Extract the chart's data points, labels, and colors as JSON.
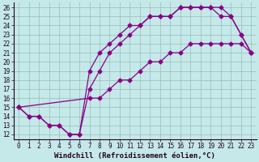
{
  "xlabel": "Windchill (Refroidissement éolien,°C)",
  "xlim": [
    -0.5,
    23.5
  ],
  "ylim": [
    11.5,
    26.5
  ],
  "xticks": [
    0,
    1,
    2,
    3,
    4,
    5,
    6,
    7,
    8,
    9,
    10,
    11,
    12,
    13,
    14,
    15,
    16,
    17,
    18,
    19,
    20,
    21,
    22,
    23
  ],
  "yticks": [
    12,
    13,
    14,
    15,
    16,
    17,
    18,
    19,
    20,
    21,
    22,
    23,
    24,
    25,
    26
  ],
  "bg_color": "#c5e8e8",
  "line_color": "#880088",
  "grid_color": "#99bbbb",
  "curve_upper_x": [
    0,
    1,
    2,
    3,
    4,
    5,
    6,
    7,
    8,
    9,
    10,
    11,
    12,
    13,
    14,
    15,
    16,
    17,
    18,
    19,
    20,
    21,
    22,
    23
  ],
  "curve_upper_y": [
    15,
    14,
    14,
    13,
    13,
    12,
    12,
    19,
    21,
    22,
    23,
    24,
    24,
    25,
    25,
    25,
    26,
    26,
    26,
    26,
    25,
    25,
    23,
    21
  ],
  "curve_mid_x": [
    0,
    1,
    2,
    3,
    4,
    5,
    6,
    7,
    8,
    9,
    10,
    11,
    12,
    13,
    14,
    15,
    16,
    17,
    18,
    19,
    20,
    21,
    22,
    23
  ],
  "curve_mid_y": [
    15,
    14,
    14,
    13,
    13,
    12,
    12,
    17,
    19,
    21,
    22,
    23,
    24,
    25,
    25,
    25,
    26,
    26,
    26,
    26,
    26,
    25,
    23,
    21
  ],
  "curve_low_x": [
    0,
    7,
    8,
    9,
    10,
    11,
    12,
    13,
    14,
    15,
    16,
    17,
    18,
    19,
    20,
    21,
    22,
    23
  ],
  "curve_low_y": [
    15,
    16,
    16,
    17,
    18,
    18,
    19,
    20,
    20,
    21,
    21,
    22,
    22,
    22,
    22,
    22,
    22,
    21
  ],
  "marker": "D",
  "markersize": 2.5,
  "linewidth": 0.9,
  "tick_fontsize": 5.5,
  "xlabel_fontsize": 6.5
}
